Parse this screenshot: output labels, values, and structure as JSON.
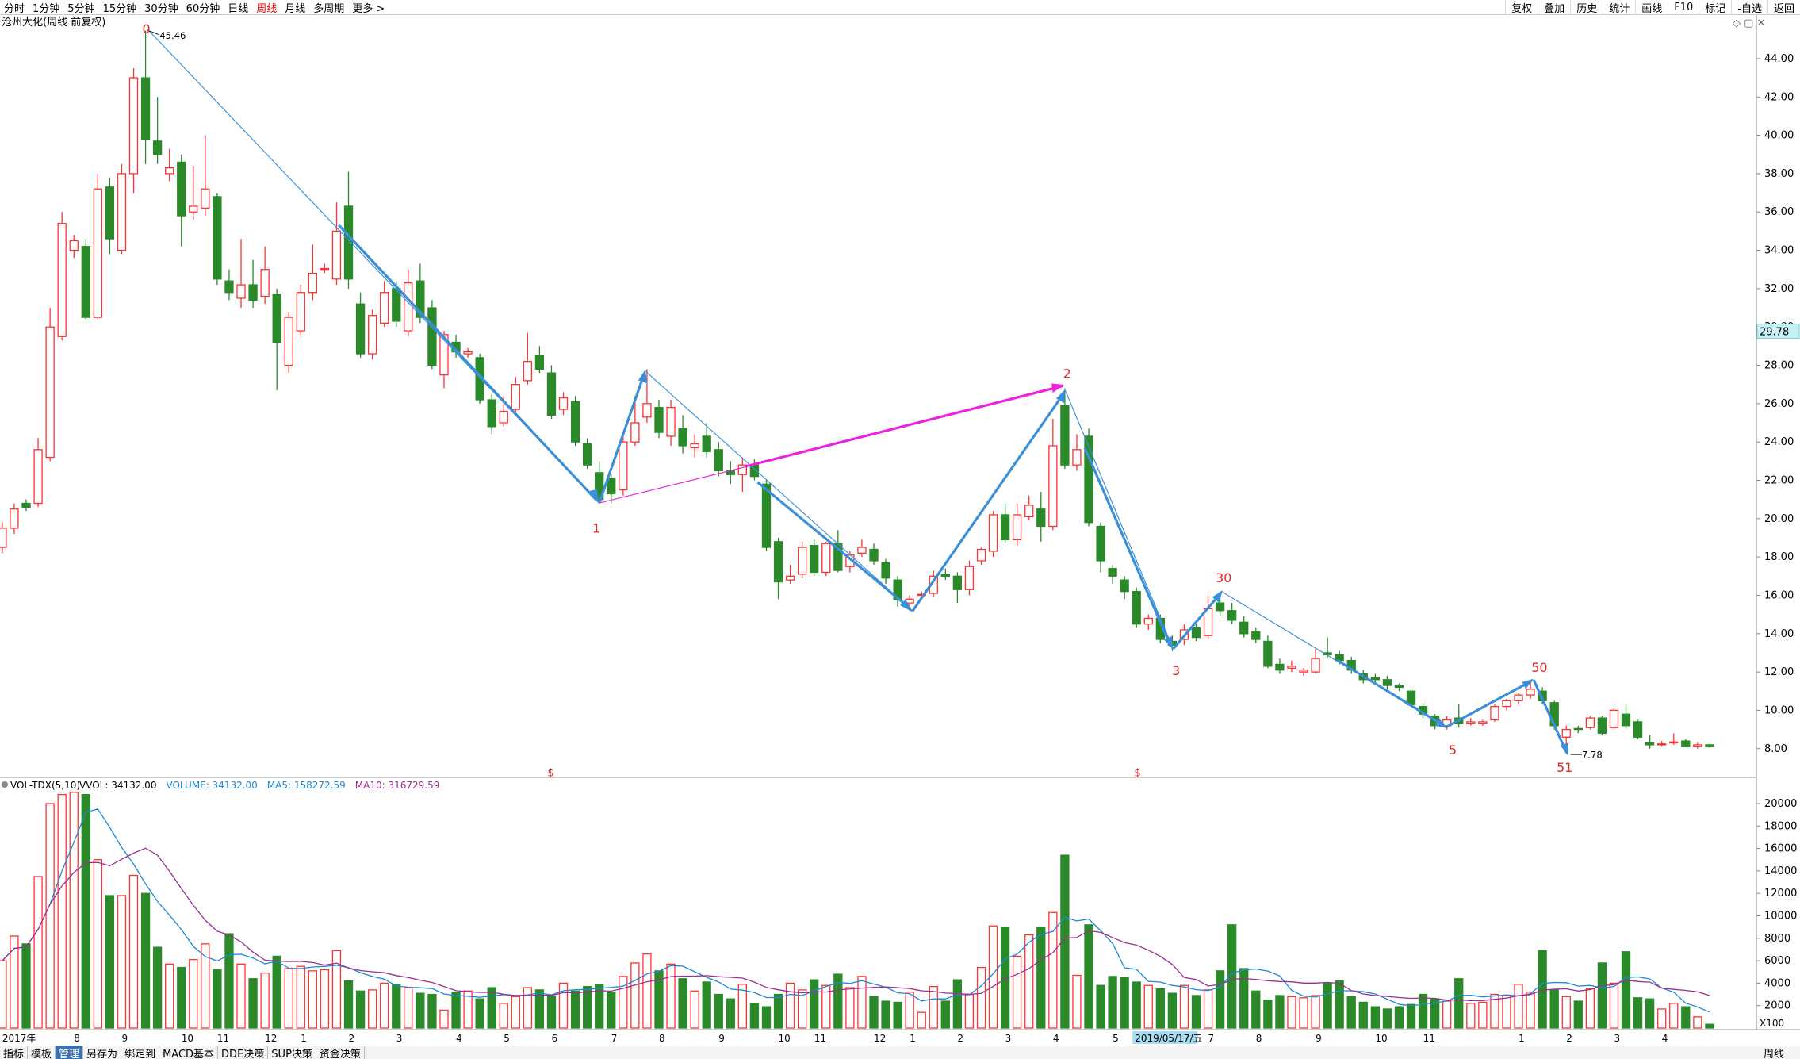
{
  "toolbar": {
    "periods": [
      "分时",
      "1分钟",
      "5分钟",
      "15分钟",
      "30分钟",
      "60分钟",
      "日线",
      "周线",
      "月线",
      "多周期",
      "更多 >"
    ],
    "active": "周线",
    "tools": [
      "复权",
      "叠加",
      "历史",
      "统计",
      "画线",
      "F10",
      "标记",
      "-自选",
      "返回"
    ]
  },
  "tabs": {
    "items": [
      "指标",
      "模板",
      "管理",
      "另存为",
      "绑定到",
      "MACD基本",
      "DDE决策",
      "SUP决策",
      "资金决策"
    ],
    "active": "管理",
    "period": "周线"
  },
  "chart_data": [
    {
      "type": "candlestick",
      "title": "沧州大化(周线 前复权)",
      "up_color": "#ff3232",
      "down_color": "#2a8a2a",
      "ylim": [
        6.5,
        46.15
      ],
      "yticks": [
        {
          "value": 8,
          "label": "8.00"
        },
        {
          "value": 10,
          "label": "10.00"
        },
        {
          "value": 12,
          "label": "12.00"
        },
        {
          "value": 14,
          "label": "14.00"
        },
        {
          "value": 16,
          "label": "16.00"
        },
        {
          "value": 18,
          "label": "18.00"
        },
        {
          "value": 20,
          "label": "20.00"
        },
        {
          "value": 22,
          "label": "22.00"
        },
        {
          "value": 24,
          "label": "24.00"
        },
        {
          "value": 26,
          "label": "26.00"
        },
        {
          "value": 28,
          "label": "28.00"
        },
        {
          "value": 30,
          "label": "30.00"
        },
        {
          "value": 32,
          "label": "32.00"
        },
        {
          "value": 34,
          "label": "34.00"
        },
        {
          "value": 36,
          "label": "36.00"
        },
        {
          "value": 38,
          "label": "38.00"
        },
        {
          "value": 40,
          "label": "40.00"
        },
        {
          "value": 42,
          "label": "42.00"
        },
        {
          "value": 44,
          "label": "44.00"
        }
      ],
      "current_price": 29.78,
      "annotations": [
        "0",
        "45.46",
        "1",
        "2",
        "3",
        "30",
        "5",
        "50",
        "51",
        "7.78",
        "$",
        "$"
      ],
      "categories": [
        "2017年",
        null,
        null,
        null,
        null,
        null,
        "8",
        null,
        null,
        null,
        "9",
        null,
        null,
        null,
        null,
        "10",
        null,
        null,
        "11",
        null,
        null,
        null,
        "12",
        null,
        null,
        "1",
        null,
        null,
        null,
        "2",
        null,
        null,
        null,
        "3",
        null,
        null,
        null,
        null,
        "4",
        null,
        null,
        null,
        "5",
        null,
        null,
        null,
        "6",
        null,
        null,
        null,
        null,
        "7",
        null,
        null,
        null,
        "8",
        null,
        null,
        null,
        null,
        "9",
        null,
        null,
        null,
        null,
        "10",
        null,
        null,
        "11",
        null,
        null,
        null,
        null,
        "12",
        null,
        null,
        "1",
        null,
        null,
        null,
        "2",
        null,
        null,
        null,
        "3",
        null,
        null,
        null,
        "4",
        null,
        null,
        null,
        null,
        "5",
        null,
        "2019/05/17/五",
        null,
        null,
        null,
        null,
        null,
        "7",
        null,
        null,
        null,
        "8",
        null,
        null,
        null,
        null,
        "9",
        null,
        null,
        null,
        null,
        "10",
        null,
        null,
        null,
        "11",
        null,
        null,
        null,
        null,
        null,
        null,
        null,
        "1",
        null,
        null,
        null,
        "2",
        null,
        null,
        null,
        "3",
        null,
        null,
        null,
        "4",
        null,
        null,
        null,
        null
      ],
      "ohlc": [
        [
          18.5,
          19.8,
          18.2,
          19.5
        ],
        [
          19.5,
          20.8,
          19.2,
          20.5
        ],
        [
          20.8,
          21,
          20.4,
          20.6
        ],
        [
          20.8,
          24.2,
          20.6,
          23.6
        ],
        [
          23.2,
          31,
          23,
          30
        ],
        [
          29.5,
          36,
          29.3,
          35.4
        ],
        [
          34,
          34.8,
          33.6,
          34.5
        ],
        [
          34.2,
          34.6,
          30.4,
          30.5
        ],
        [
          30.5,
          38,
          30.4,
          37.2
        ],
        [
          37.3,
          37.8,
          33.8,
          34.6
        ],
        [
          34,
          38.5,
          33.8,
          38
        ],
        [
          38,
          43.5,
          37,
          43
        ],
        [
          43,
          45.46,
          38.5,
          39.8
        ],
        [
          39.7,
          42,
          38.5,
          39
        ],
        [
          38,
          39.3,
          37.6,
          38.3
        ],
        [
          38.6,
          39,
          34.2,
          35.8
        ],
        [
          36,
          38.4,
          35.6,
          36.3
        ],
        [
          36.2,
          40,
          35.8,
          37.2
        ],
        [
          36.8,
          37,
          32.2,
          32.5
        ],
        [
          32.4,
          33,
          31.4,
          31.8
        ],
        [
          31.5,
          34.6,
          31,
          32.2
        ],
        [
          32.2,
          33.5,
          31,
          31.4
        ],
        [
          31.6,
          34.2,
          31.2,
          33
        ],
        [
          31.7,
          32,
          26.7,
          29.2
        ],
        [
          28,
          30.8,
          27.6,
          30.5
        ],
        [
          29.8,
          32.2,
          29.5,
          31.8
        ],
        [
          31.8,
          34.3,
          31.4,
          32.8
        ],
        [
          33,
          33.3,
          32.8,
          33.05
        ],
        [
          32.5,
          36.5,
          32.2,
          35
        ],
        [
          36.3,
          38.1,
          32,
          32.5
        ],
        [
          31.2,
          31.8,
          28.4,
          28.6
        ],
        [
          28.6,
          30.9,
          28.3,
          30.6
        ],
        [
          30.2,
          32.4,
          30,
          31.8
        ],
        [
          32,
          32.4,
          30,
          30.3
        ],
        [
          29.8,
          33,
          29.5,
          32.3
        ],
        [
          32.4,
          33.3,
          30.2,
          30.5
        ],
        [
          31,
          31.4,
          27.8,
          28
        ],
        [
          27.5,
          29.8,
          26.8,
          29.6
        ],
        [
          29.2,
          29.6,
          28.4,
          28.7
        ],
        [
          28.6,
          28.9,
          28.4,
          28.7
        ],
        [
          28.4,
          28.6,
          26,
          26.2
        ],
        [
          26.2,
          26.5,
          24.4,
          24.8
        ],
        [
          25,
          26.4,
          24.8,
          25.6
        ],
        [
          25.7,
          27.4,
          25.4,
          27
        ],
        [
          27.2,
          29.7,
          27,
          28.2
        ],
        [
          28.5,
          29,
          27.6,
          27.8
        ],
        [
          27.6,
          28,
          25.2,
          25.4
        ],
        [
          25.7,
          26.6,
          25.4,
          26.3
        ],
        [
          26.1,
          26.4,
          23.8,
          24
        ],
        [
          23.9,
          24.2,
          22.6,
          22.8
        ],
        [
          22.4,
          23,
          20.9,
          21
        ],
        [
          22.1,
          22.3,
          20.8,
          21.3
        ],
        [
          21.5,
          24.4,
          21.2,
          24
        ],
        [
          24,
          26.4,
          23.8,
          25
        ],
        [
          25.3,
          27.8,
          25,
          26
        ],
        [
          25.8,
          26.2,
          24.2,
          24.5
        ],
        [
          24.3,
          26.2,
          23.8,
          25.8
        ],
        [
          24.7,
          25.4,
          23.4,
          23.8
        ],
        [
          23.7,
          24.4,
          23.2,
          23.9
        ],
        [
          24.3,
          25,
          23.2,
          23.5
        ],
        [
          23.6,
          24,
          22.2,
          22.5
        ],
        [
          22.5,
          23,
          21.8,
          22.3
        ],
        [
          22.3,
          23.2,
          21.4,
          22.8
        ],
        [
          22.8,
          23.1,
          22,
          22.2
        ],
        [
          21.8,
          22,
          18.3,
          18.5
        ],
        [
          18.8,
          19,
          15.8,
          16.7
        ],
        [
          16.8,
          17.6,
          16.6,
          17
        ],
        [
          17.1,
          18.8,
          16.9,
          18.5
        ],
        [
          18.6,
          18.9,
          17,
          17.2
        ],
        [
          17.2,
          18.8,
          17,
          18.7
        ],
        [
          18.7,
          19.4,
          17.2,
          17.3
        ],
        [
          17.5,
          18.3,
          17.2,
          18.1
        ],
        [
          18.2,
          18.9,
          18,
          18.5
        ],
        [
          18.4,
          18.7,
          17.6,
          17.8
        ],
        [
          17.7,
          17.9,
          16.6,
          16.9
        ],
        [
          16.8,
          17,
          15.4,
          15.8
        ],
        [
          15.6,
          16,
          15.2,
          15.8
        ],
        [
          16,
          16.2,
          15.8,
          16.05
        ],
        [
          16.1,
          17.3,
          15.9,
          17
        ],
        [
          17.1,
          17.4,
          16.8,
          17
        ],
        [
          17,
          17.2,
          15.6,
          16.3
        ],
        [
          16.3,
          17.8,
          16,
          17.5
        ],
        [
          17.8,
          18.5,
          17.6,
          18.4
        ],
        [
          18.3,
          20.4,
          18,
          20.2
        ],
        [
          20.2,
          20.8,
          18.7,
          18.9
        ],
        [
          18.9,
          20.8,
          18.6,
          20.2
        ],
        [
          20.1,
          21.2,
          19.9,
          20.7
        ],
        [
          20.5,
          21.4,
          18.8,
          19.6
        ],
        [
          19.6,
          25.2,
          19.4,
          23.8
        ],
        [
          25.9,
          26.8,
          22.6,
          22.8
        ],
        [
          22.8,
          24.4,
          22.5,
          23.6
        ],
        [
          24.3,
          24.7,
          19.6,
          19.8
        ],
        [
          19.6,
          19.8,
          17.2,
          17.8
        ],
        [
          17.4,
          17.6,
          16.6,
          17
        ],
        [
          16.8,
          17,
          15.8,
          16.2
        ],
        [
          16.2,
          16.4,
          14.3,
          14.5
        ],
        [
          14.5,
          15,
          14.2,
          14.8
        ],
        [
          14.8,
          15,
          13.5,
          13.7
        ],
        [
          13.6,
          13.9,
          13.1,
          13.4
        ],
        [
          13.7,
          14.5,
          13.4,
          14.2
        ],
        [
          14.3,
          14.5,
          13.6,
          13.8
        ],
        [
          13.9,
          16,
          13.7,
          15.3
        ],
        [
          15.6,
          16.2,
          14.9,
          15.2
        ],
        [
          15.2,
          15.6,
          14.5,
          14.7
        ],
        [
          14.6,
          14.9,
          13.8,
          14
        ],
        [
          14.1,
          14.3,
          13.5,
          13.7
        ],
        [
          13.6,
          13.9,
          12.2,
          12.3
        ],
        [
          12.4,
          12.7,
          11.9,
          12.1
        ],
        [
          12.2,
          12.6,
          12,
          12.3
        ],
        [
          12,
          12.2,
          11.8,
          12.1
        ],
        [
          12,
          13.2,
          11.9,
          12.7
        ],
        [
          13,
          13.8,
          12.7,
          12.9
        ],
        [
          12.9,
          13.1,
          12.4,
          12.6
        ],
        [
          12.6,
          12.8,
          11.9,
          12.1
        ],
        [
          11.9,
          12.1,
          11.4,
          11.6
        ],
        [
          11.7,
          11.9,
          11.4,
          11.6
        ],
        [
          11.6,
          11.8,
          11.1,
          11.3
        ],
        [
          11.3,
          11.4,
          11,
          11.2
        ],
        [
          11,
          11.1,
          10.2,
          10.3
        ],
        [
          10.2,
          10.4,
          9.6,
          9.8
        ],
        [
          9.7,
          9.8,
          9,
          9.2
        ],
        [
          9.2,
          9.7,
          9,
          9.5
        ],
        [
          9.6,
          10.3,
          9.1,
          9.3
        ],
        [
          9.3,
          9.6,
          9.2,
          9.4
        ],
        [
          9.3,
          9.5,
          9.2,
          9.4
        ],
        [
          9.5,
          10.3,
          9.4,
          10.2
        ],
        [
          10.2,
          10.6,
          10,
          10.5
        ],
        [
          10.5,
          10.9,
          10.3,
          10.8
        ],
        [
          10.8,
          11.6,
          10.6,
          11.1
        ],
        [
          11,
          11.2,
          10.3,
          10.5
        ],
        [
          10.4,
          10.5,
          9,
          9.2
        ],
        [
          8.6,
          9.2,
          7.78,
          9
        ],
        [
          9.05,
          9.2,
          8.8,
          9
        ],
        [
          9.1,
          9.7,
          9,
          9.6
        ],
        [
          9.6,
          9.7,
          8.7,
          8.8
        ],
        [
          9.1,
          10.1,
          9,
          10
        ],
        [
          9.8,
          10.3,
          9,
          9.2
        ],
        [
          9.4,
          9.5,
          8.5,
          8.6
        ],
        [
          8.3,
          8.7,
          8,
          8.2
        ],
        [
          8.2,
          8.4,
          8.1,
          8.25
        ],
        [
          8.3,
          8.8,
          8.2,
          8.35
        ],
        [
          8.4,
          8.5,
          8.1,
          8.1
        ],
        [
          8.1,
          8.3,
          8,
          8.2
        ],
        [
          8.2,
          8.25,
          8.05,
          8.1
        ]
      ]
    },
    {
      "type": "volume-bar",
      "indicator": "VOL-TDX(5,10)",
      "readouts": [
        "VVOL: 34132.00",
        "VOLUME: 34132.00",
        "MA5: 158272.59",
        "MA10: 316729.59"
      ],
      "readout_colors": [
        "#000",
        "#1e88d8",
        "#1e88d8",
        "#9b2f8f"
      ],
      "unit_label": "X100",
      "ma5_color": "#1e88d8",
      "ma10_color": "#9b2f8f",
      "ylim": [
        -141,
        22330
      ],
      "yticks": [
        2000,
        4000,
        6000,
        8000,
        10000,
        12000,
        14000,
        16000,
        18000,
        20000
      ],
      "values": [
        6000,
        8200,
        7500,
        13500,
        20000,
        20800,
        21000,
        20800,
        15000,
        11800,
        11800,
        13600,
        12000,
        7200,
        5700,
        5400,
        6100,
        7500,
        5200,
        8400,
        5700,
        4400,
        4900,
        6400,
        5300,
        5500,
        5100,
        5200,
        6900,
        4200,
        3300,
        3400,
        4000,
        3900,
        3600,
        3100,
        3000,
        1600,
        3200,
        3300,
        2600,
        3600,
        2200,
        2800,
        3600,
        3400,
        2800,
        4000,
        3300,
        3700,
        3900,
        3200,
        4600,
        5800,
        6600,
        5100,
        5700,
        4400,
        3300,
        4100,
        3000,
        2600,
        3900,
        2200,
        1900,
        3000,
        4000,
        3400,
        4300,
        3800,
        4800,
        3600,
        4600,
        2800,
        2400,
        2300,
        3200,
        1400,
        3700,
        2400,
        4300,
        3000,
        5400,
        9100,
        9000,
        6400,
        8300,
        9000,
        10300,
        15400,
        4700,
        9200,
        3800,
        4600,
        4500,
        4100,
        3800,
        3500,
        3100,
        3800,
        2900,
        3400,
        5100,
        9200,
        5300,
        3300,
        2500,
        2900,
        2800,
        2700,
        2900,
        4000,
        4200,
        2800,
        2300,
        1900,
        1700,
        1900,
        2100,
        3000,
        2600,
        2400,
        4400,
        2200,
        2300,
        3000,
        2900,
        3900,
        3200,
        6900,
        3400,
        2800,
        2400,
        3500,
        5800,
        4000,
        6800,
        2700,
        2600,
        1700,
        2200,
        1900,
        1000,
        340
      ]
    }
  ]
}
